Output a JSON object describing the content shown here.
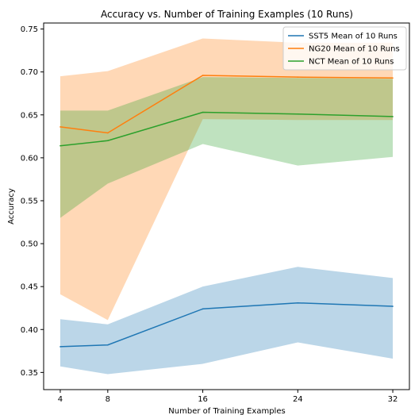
{
  "chart_data": {
    "type": "line",
    "title": "Accuracy vs. Number of Training Examples (10 Runs)",
    "xlabel": "Number of Training Examples",
    "ylabel": "Accuracy",
    "x": [
      4,
      8,
      16,
      24,
      32
    ],
    "xticks": [
      "4",
      "8",
      "16",
      "24",
      "32"
    ],
    "xlim": [
      2.6,
      33.4
    ],
    "ylim": [
      0.33,
      0.757
    ],
    "yticks": [
      "0.35",
      "0.40",
      "0.45",
      "0.50",
      "0.55",
      "0.60",
      "0.65",
      "0.70",
      "0.75"
    ],
    "legend_position": "top-right",
    "grid": false,
    "series": [
      {
        "name": "SST5 Mean of 10 Runs",
        "color": "#1f77b4",
        "values": [
          0.38,
          0.382,
          0.424,
          0.431,
          0.427
        ],
        "band_low": [
          0.357,
          0.348,
          0.36,
          0.385,
          0.366
        ],
        "band_high": [
          0.412,
          0.406,
          0.45,
          0.473,
          0.46
        ]
      },
      {
        "name": "NG20 Mean of 10 Runs",
        "color": "#ff7f0e",
        "values": [
          0.636,
          0.629,
          0.696,
          0.694,
          0.693
        ],
        "band_low": [
          0.441,
          0.411,
          0.645,
          0.644,
          0.644
        ],
        "band_high": [
          0.695,
          0.701,
          0.739,
          0.734,
          0.734
        ]
      },
      {
        "name": "NCT Mean of 10 Runs",
        "color": "#2ca02c",
        "values": [
          0.614,
          0.62,
          0.653,
          0.651,
          0.648
        ],
        "band_low": [
          0.53,
          0.57,
          0.616,
          0.591,
          0.601
        ],
        "band_high": [
          0.655,
          0.655,
          0.694,
          0.693,
          0.692
        ]
      }
    ]
  }
}
